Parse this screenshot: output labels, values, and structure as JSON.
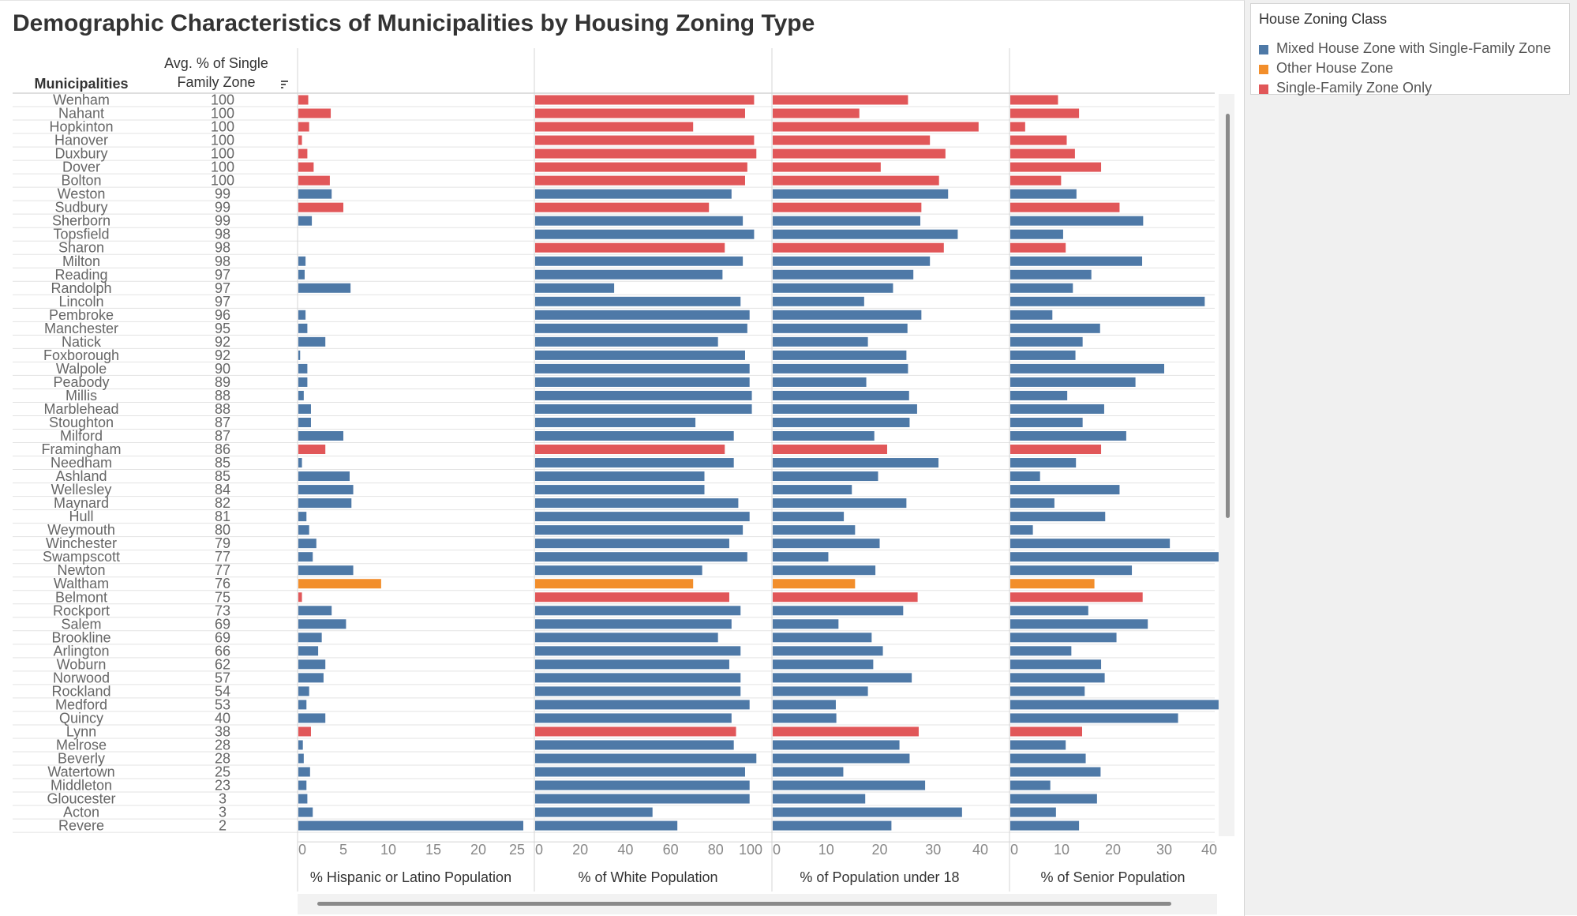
{
  "title": "Demographic Characteristics of Municipalities by Housing Zoning Type",
  "legend": {
    "title": "House Zoning Class",
    "items": [
      {
        "label": "Mixed House Zone with Single-Family Zone",
        "color": "#4e79a7"
      },
      {
        "label": "Other House Zone",
        "color": "#f28e2b"
      },
      {
        "label": "Single-Family Zone Only",
        "color": "#e15759"
      }
    ]
  },
  "table_headers": {
    "municipalities": "Municipalities",
    "avg_single_line1": "Avg. % of Single",
    "avg_single_line2": "Family Zone",
    "sort_icon": "sort-descending-icon"
  },
  "chart_data": {
    "type": "bar",
    "orientation": "horizontal",
    "categories": [
      "Wenham",
      "Nahant",
      "Hopkinton",
      "Hanover",
      "Duxbury",
      "Dover",
      "Bolton",
      "Weston",
      "Sudbury",
      "Sherborn",
      "Topsfield",
      "Sharon",
      "Milton",
      "Reading",
      "Randolph",
      "Lincoln",
      "Pembroke",
      "Manchester",
      "Natick",
      "Foxborough",
      "Walpole",
      "Peabody",
      "Millis",
      "Marblehead",
      "Stoughton",
      "Milford",
      "Framingham",
      "Needham",
      "Ashland",
      "Wellesley",
      "Maynard",
      "Hull",
      "Weymouth",
      "Winchester",
      "Swampscott",
      "Newton",
      "Waltham",
      "Belmont",
      "Rockport",
      "Salem",
      "Brookline",
      "Arlington",
      "Woburn",
      "Norwood",
      "Rockland",
      "Medford",
      "Quincy",
      "Lynn",
      "Melrose",
      "Beverly",
      "Watertown",
      "Middleton",
      "Gloucester",
      "Acton",
      "Revere"
    ],
    "avg_single_family_zone": [
      100,
      100,
      100,
      100,
      100,
      100,
      100,
      99,
      99,
      99,
      98,
      98,
      98,
      97,
      97,
      97,
      96,
      95,
      92,
      92,
      90,
      89,
      88,
      88,
      87,
      87,
      86,
      85,
      85,
      84,
      82,
      81,
      80,
      79,
      77,
      77,
      76,
      75,
      73,
      69,
      69,
      66,
      62,
      57,
      54,
      53,
      40,
      38,
      28,
      28,
      25,
      23,
      3,
      3,
      2
    ],
    "zoning_class": [
      "S",
      "S",
      "S",
      "S",
      "S",
      "S",
      "S",
      "M",
      "S",
      "M",
      "M",
      "S",
      "M",
      "M",
      "M",
      "M",
      "M",
      "M",
      "M",
      "M",
      "M",
      "M",
      "M",
      "M",
      "M",
      "M",
      "S",
      "M",
      "M",
      "M",
      "M",
      "M",
      "M",
      "M",
      "M",
      "M",
      "O",
      "S",
      "M",
      "M",
      "M",
      "M",
      "M",
      "M",
      "M",
      "M",
      "M",
      "S",
      "M",
      "M",
      "M",
      "M",
      "M",
      "M",
      "M"
    ],
    "zoning_class_key": {
      "M": "Mixed House Zone with Single-Family Zone",
      "O": "Other House Zone",
      "S": "Single-Family Zone Only"
    },
    "colors": {
      "M": "#4e79a7",
      "O": "#f28e2b",
      "S": "#e15759"
    },
    "panels": [
      {
        "key": "hispanic",
        "xlabel": "% Hispanic or Latino Population",
        "xlim": [
          0,
          25
        ],
        "ticks": [
          "0",
          "5",
          "10",
          "15",
          "20",
          "25"
        ],
        "tick_values": [
          0,
          5,
          10,
          15,
          20,
          25
        ],
        "values": [
          1.1,
          3.6,
          1.2,
          0.4,
          1.0,
          1.7,
          3.5,
          3.7,
          5.0,
          1.5,
          0,
          0,
          0.8,
          0.7,
          5.8,
          0,
          0.8,
          1.0,
          3.0,
          0.2,
          1.0,
          1.0,
          0.6,
          1.4,
          1.4,
          5.0,
          3.0,
          0.4,
          5.7,
          6.1,
          5.9,
          0.9,
          1.2,
          2.0,
          1.6,
          6.1,
          9.2,
          0.4,
          3.7,
          5.3,
          2.6,
          2.2,
          3.0,
          2.8,
          1.2,
          0.9,
          3.0,
          1.4,
          0.5,
          0.6,
          1.3,
          0.9,
          1.0,
          1.6,
          25.0
        ]
      },
      {
        "key": "white",
        "xlabel": "% of White Population",
        "xlim": [
          0,
          100
        ],
        "ticks": [
          "0",
          "20",
          "40",
          "60",
          "80",
          "100"
        ],
        "tick_values": [
          0,
          20,
          40,
          60,
          80,
          100
        ],
        "values": [
          97,
          93,
          70,
          97,
          98,
          94,
          93,
          87,
          77,
          92,
          97,
          84,
          92,
          83,
          35,
          91,
          95,
          94,
          81,
          93,
          95,
          95,
          96,
          96,
          71,
          88,
          84,
          88,
          75,
          75,
          90,
          95,
          92,
          86,
          94,
          74,
          70,
          86,
          91,
          87,
          81,
          91,
          86,
          91,
          91,
          95,
          87,
          89,
          88,
          98,
          93,
          95,
          95,
          52,
          63
        ]
      },
      {
        "key": "under18",
        "xlabel": "% of Population under 18",
        "xlim": [
          0,
          40
        ],
        "ticks": [
          "0",
          "10",
          "20",
          "30",
          "40"
        ],
        "tick_values": [
          0,
          10,
          20,
          30,
          40
        ],
        "values": [
          25.3,
          16.2,
          38.5,
          29.4,
          32.3,
          20.2,
          31.1,
          32.8,
          27.8,
          27.6,
          34.6,
          32.0,
          29.4,
          26.3,
          22.5,
          17.1,
          27.8,
          25.2,
          17.8,
          25.0,
          25.3,
          17.5,
          25.5,
          27.0,
          25.6,
          19.0,
          21.4,
          31.0,
          19.7,
          14.8,
          25.0,
          13.3,
          15.4,
          20.0,
          10.4,
          19.2,
          15.4,
          27.1,
          24.4,
          12.3,
          18.5,
          20.6,
          18.8,
          26.0,
          17.8,
          11.8,
          11.9,
          27.3,
          23.7,
          25.6,
          13.2,
          28.5,
          17.3,
          35.4,
          22.2
        ]
      },
      {
        "key": "senior",
        "xlabel": "% of Senior Population",
        "xlim": [
          0,
          40
        ],
        "ticks": [
          "0",
          "10",
          "20",
          "30",
          "40"
        ],
        "tick_values": [
          0,
          10,
          20,
          30,
          40
        ],
        "values": [
          9.3,
          13.4,
          2.9,
          11.0,
          12.6,
          17.7,
          9.9,
          12.9,
          21.3,
          25.9,
          10.3,
          10.8,
          25.7,
          15.8,
          12.2,
          37.9,
          8.2,
          17.5,
          14.1,
          12.7,
          30.0,
          24.4,
          11.1,
          18.3,
          14.1,
          22.6,
          17.7,
          12.8,
          5.8,
          21.3,
          8.6,
          18.5,
          4.4,
          31.1,
          40.6,
          23.7,
          16.4,
          25.8,
          15.2,
          26.8,
          20.7,
          11.9,
          17.7,
          18.4,
          14.5,
          40.6,
          32.7,
          14.0,
          10.8,
          14.7,
          17.6,
          7.8,
          16.9,
          8.9,
          13.4
        ]
      }
    ]
  }
}
